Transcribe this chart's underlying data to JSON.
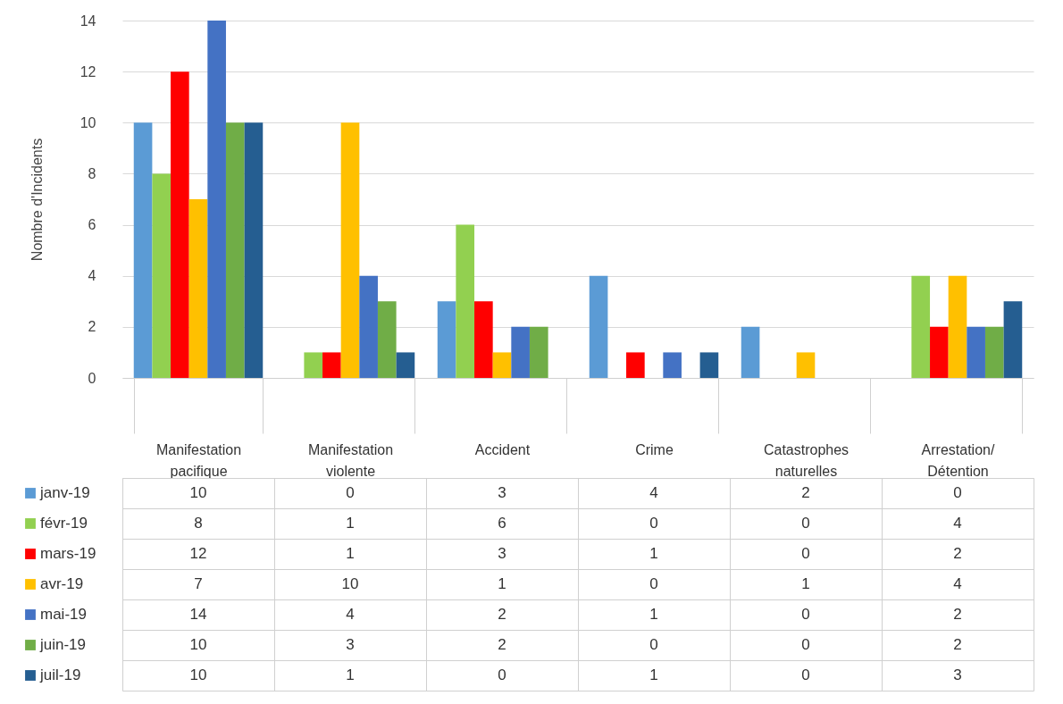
{
  "chart_data": {
    "type": "bar",
    "ylabel": "Nombre d'Incidents",
    "categories": [
      "Manifestation pacifique",
      "Manifestation violente",
      "Accident",
      "Crime",
      "Catastrophes naturelles",
      "Arrestation/ Détention"
    ],
    "series": [
      {
        "name": "janv-19",
        "color": "#5b9bd5",
        "values": [
          10,
          0,
          3,
          4,
          2,
          0
        ]
      },
      {
        "name": "févr-19",
        "color": "#92d050",
        "values": [
          8,
          1,
          6,
          0,
          0,
          4
        ]
      },
      {
        "name": "mars-19",
        "color": "#ff0000",
        "values": [
          12,
          1,
          3,
          1,
          0,
          2
        ]
      },
      {
        "name": "avr-19",
        "color": "#ffc000",
        "values": [
          7,
          10,
          1,
          0,
          1,
          4
        ]
      },
      {
        "name": "mai-19",
        "color": "#4472c4",
        "values": [
          14,
          4,
          2,
          1,
          0,
          2
        ]
      },
      {
        "name": "juin-19",
        "color": "#70ad47",
        "values": [
          10,
          3,
          2,
          0,
          0,
          2
        ]
      },
      {
        "name": "juil-19",
        "color": "#255e91",
        "values": [
          10,
          1,
          0,
          1,
          0,
          3
        ]
      }
    ],
    "ylim": [
      0,
      14
    ],
    "yticks": [
      0,
      2,
      4,
      6,
      8,
      10,
      12,
      14
    ],
    "grid": "y",
    "legend": "bottom",
    "data_labels": true
  }
}
